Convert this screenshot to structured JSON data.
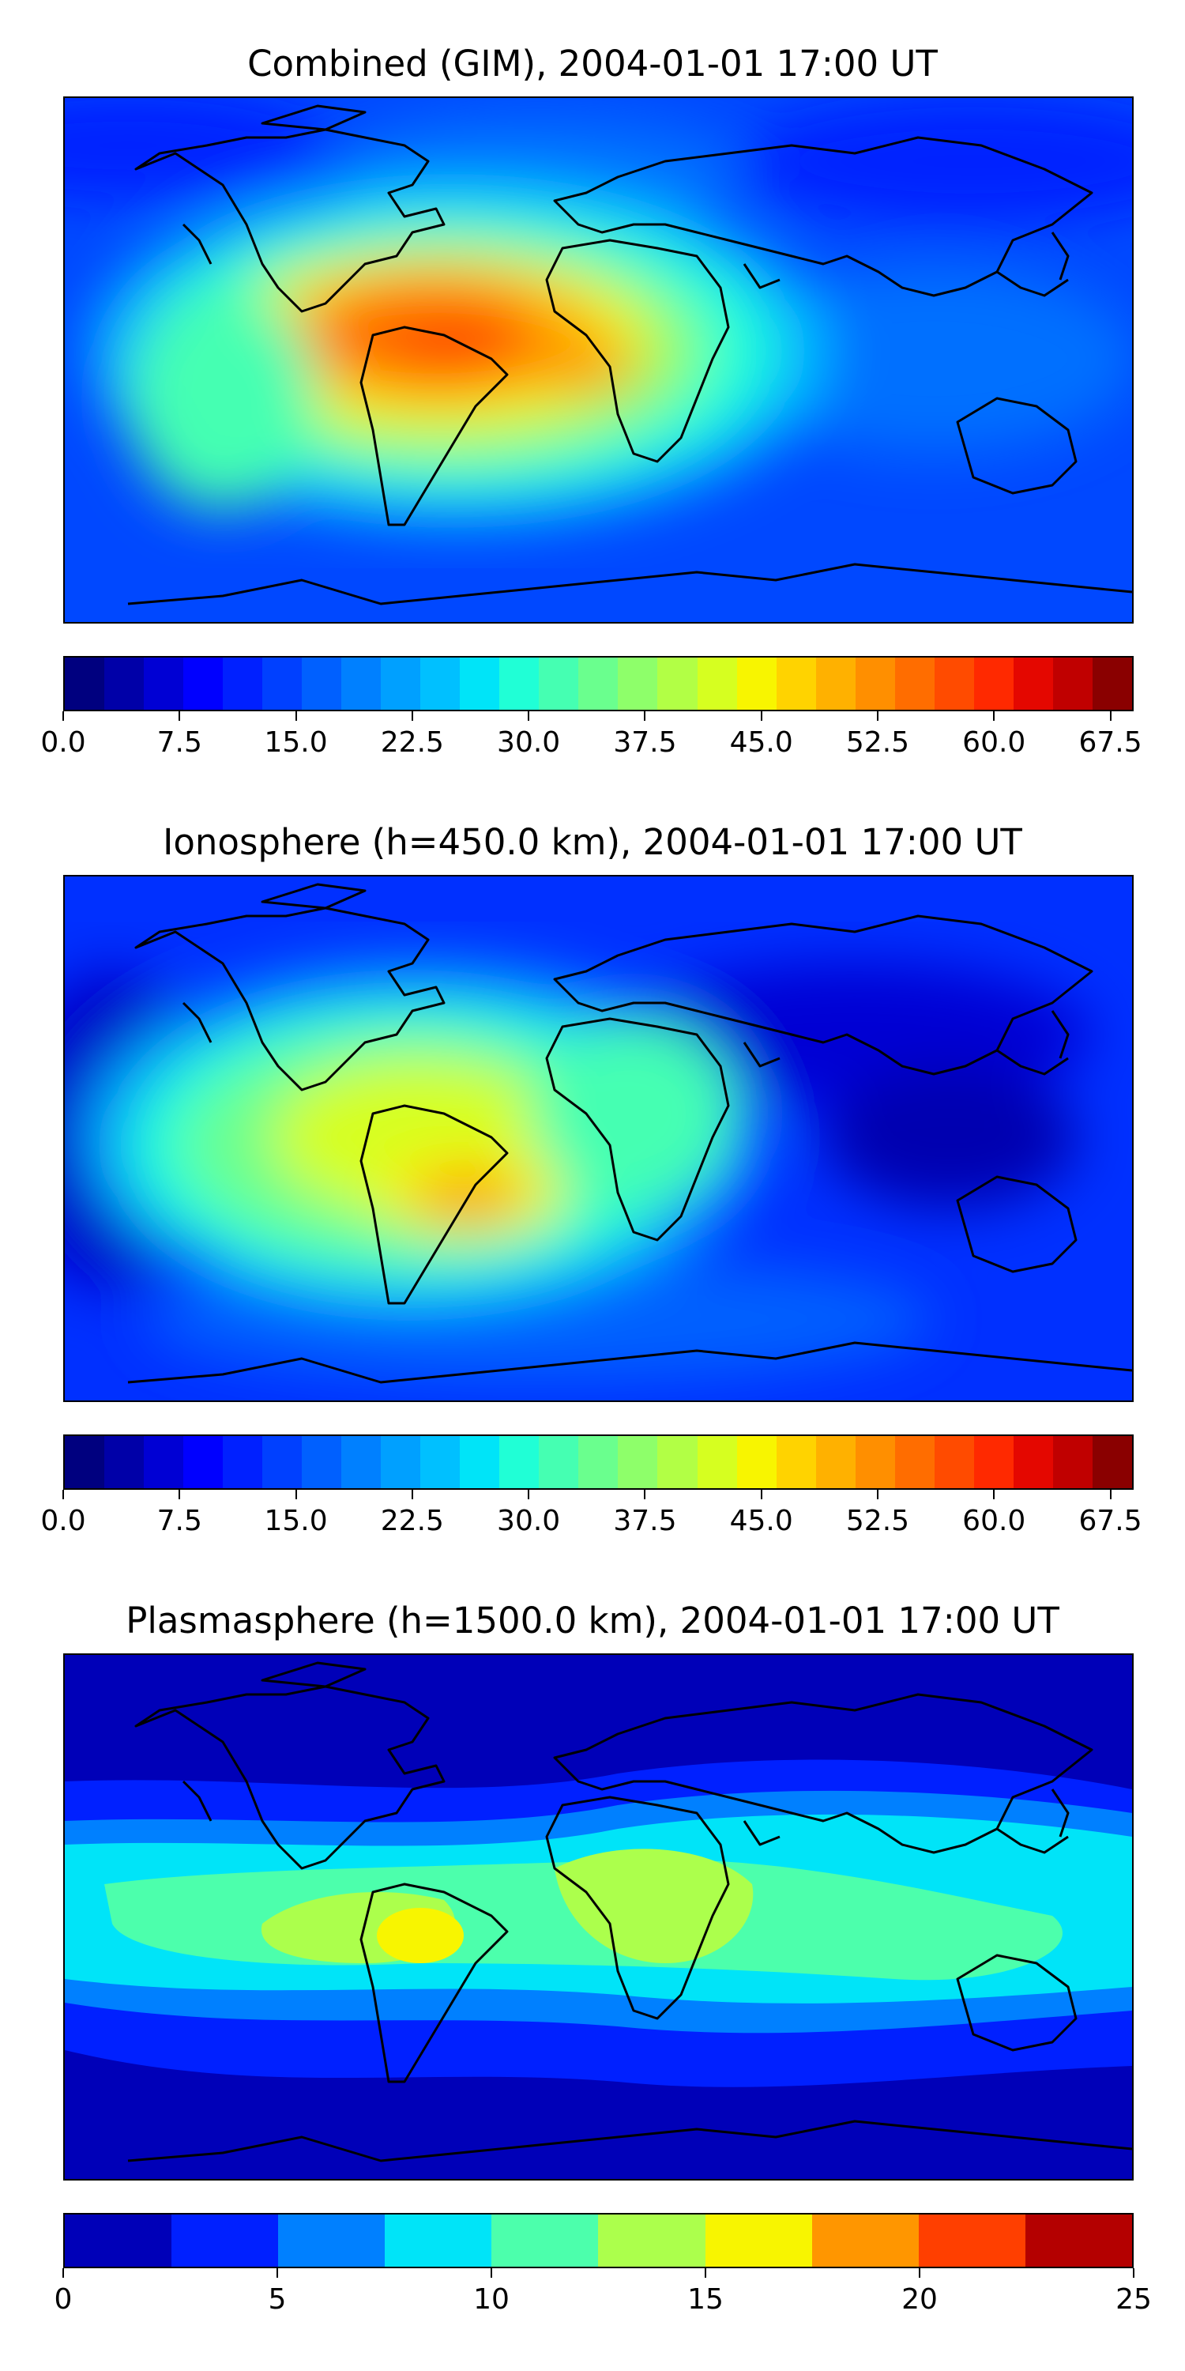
{
  "panels": [
    {
      "title": "Combined (GIM), 2004-01-01 17:00 UT",
      "colorbar_colors": [
        "#00007f",
        "#0000a8",
        "#0000d4",
        "#0000ff",
        "#0020ff",
        "#0040ff",
        "#0060ff",
        "#0080ff",
        "#00a0ff",
        "#00c0ff",
        "#00e4f8",
        "#20ffd6",
        "#45ffb2",
        "#6aff8e",
        "#8eff6a",
        "#b2ff45",
        "#d6ff20",
        "#f8f500",
        "#ffd300",
        "#ffb100",
        "#ff8f00",
        "#ff6d00",
        "#ff4b00",
        "#ff2900",
        "#e40700",
        "#c00000",
        "#8a0000"
      ],
      "tick_labels": [
        "0.0",
        "7.5",
        "15.0",
        "22.5",
        "30.0",
        "37.5",
        "45.0",
        "52.5",
        "60.0",
        "67.5"
      ],
      "tick_values": [
        0,
        7.5,
        15,
        22.5,
        30,
        37.5,
        45,
        52.5,
        60,
        67.5
      ],
      "range": [
        0,
        69
      ]
    },
    {
      "title": "Ionosphere  (h=450.0 km), 2004-01-01 17:00 UT",
      "colorbar_colors": [
        "#00007f",
        "#0000a8",
        "#0000d4",
        "#0000ff",
        "#0020ff",
        "#0040ff",
        "#0060ff",
        "#0080ff",
        "#00a0ff",
        "#00c0ff",
        "#00e4f8",
        "#20ffd6",
        "#45ffb2",
        "#6aff8e",
        "#8eff6a",
        "#b2ff45",
        "#d6ff20",
        "#f8f500",
        "#ffd300",
        "#ffb100",
        "#ff8f00",
        "#ff6d00",
        "#ff4b00",
        "#ff2900",
        "#e40700",
        "#c00000",
        "#8a0000"
      ],
      "tick_labels": [
        "0.0",
        "7.5",
        "15.0",
        "22.5",
        "30.0",
        "37.5",
        "45.0",
        "52.5",
        "60.0",
        "67.5"
      ],
      "tick_values": [
        0,
        7.5,
        15,
        22.5,
        30,
        37.5,
        45,
        52.5,
        60,
        67.5
      ],
      "range": [
        0,
        69
      ]
    },
    {
      "title": "Plasmasphere (h=1500.0 km), 2004-01-01 17:00 UT",
      "colorbar_colors": [
        "#0000b8",
        "#0020ff",
        "#0080ff",
        "#00e4f8",
        "#4cffac",
        "#acff4c",
        "#f8f500",
        "#ff9600",
        "#ff3f00",
        "#b40000"
      ],
      "tick_labels": [
        "0",
        "5",
        "10",
        "15",
        "20",
        "25"
      ],
      "tick_values": [
        0,
        5,
        10,
        15,
        20,
        25
      ],
      "range": [
        0,
        25
      ]
    }
  ]
}
